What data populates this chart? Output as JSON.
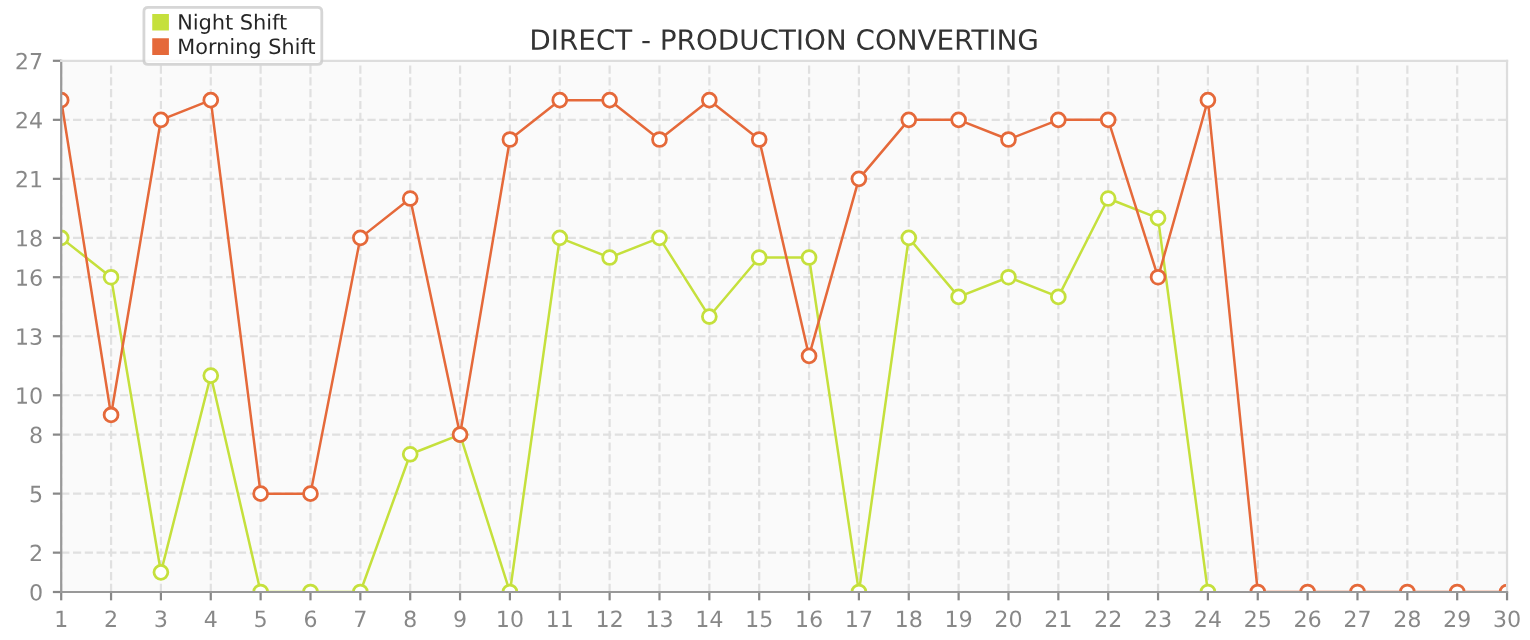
{
  "chart_data": {
    "type": "line",
    "title": "DIRECT - PRODUCTION CONVERTING",
    "categories": [
      "1",
      "2",
      "3",
      "4",
      "5",
      "6",
      "7",
      "8",
      "9",
      "10",
      "11",
      "12",
      "13",
      "14",
      "15",
      "16",
      "17",
      "18",
      "19",
      "20",
      "21",
      "22",
      "23",
      "24",
      "25",
      "26",
      "27",
      "28",
      "29",
      "30"
    ],
    "series": [
      {
        "name": "Night Shift",
        "color": "#c5e03c",
        "values": [
          18,
          16,
          1,
          11,
          0,
          0,
          0,
          7,
          8,
          0,
          18,
          17,
          18,
          14,
          17,
          17,
          0,
          18,
          15,
          16,
          15,
          20,
          19,
          0,
          null,
          null,
          null,
          null,
          null,
          null
        ]
      },
      {
        "name": "Morning Shift",
        "color": "#e5693a",
        "values": [
          25,
          9,
          24,
          25,
          5,
          5,
          18,
          20,
          8,
          23,
          25,
          25,
          23,
          25,
          23,
          12,
          21,
          24,
          24,
          23,
          24,
          24,
          16,
          25,
          0,
          0,
          0,
          0,
          0,
          0
        ]
      }
    ],
    "ylim": [
      0,
      27
    ],
    "yticks": [
      0,
      2,
      5,
      8,
      10,
      13,
      16,
      18,
      21,
      24,
      27
    ],
    "grid": true,
    "legend": "top left",
    "marker": "circle",
    "line_style": "solid"
  }
}
